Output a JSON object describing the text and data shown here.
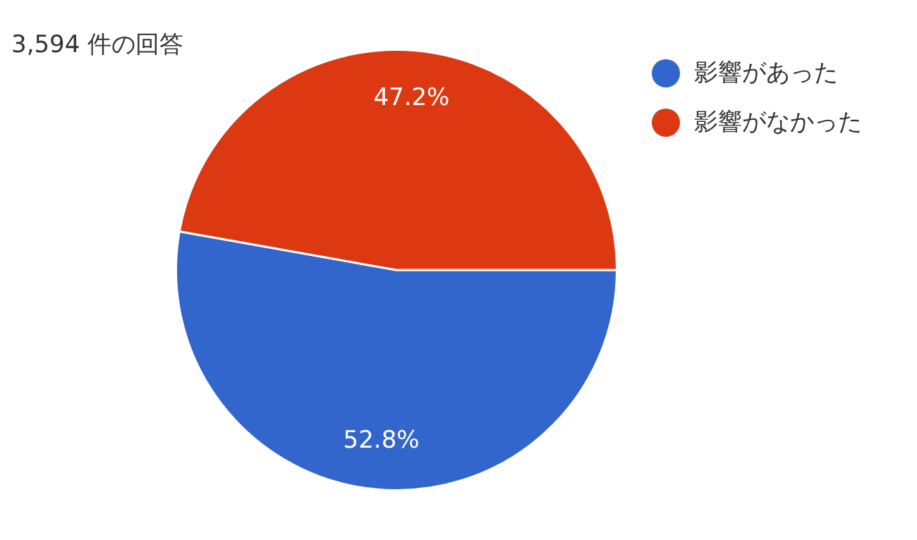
{
  "chart_data": {
    "type": "pie",
    "title": "3,594 件の回答",
    "categories": [
      "影響があった",
      "影響がなかった"
    ],
    "values": [
      52.8,
      47.2
    ],
    "colors": [
      "#3366cc",
      "#dc3912"
    ],
    "value_labels": [
      "52.8%",
      "47.2%"
    ],
    "legend": "top right"
  }
}
